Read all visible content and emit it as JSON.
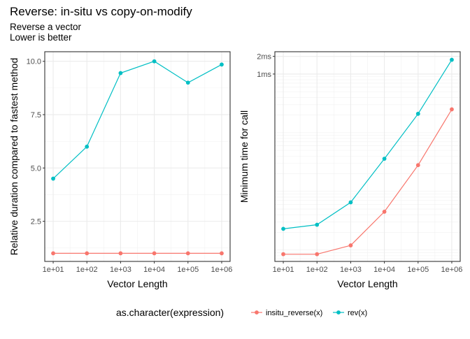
{
  "title": "Reverse: in-situ vs copy-on-modify",
  "subtitle_lines": [
    "Reverse a vector",
    "Lower is better"
  ],
  "legend": {
    "title": "as.character(expression)",
    "position": "bottom",
    "entries": [
      {
        "label": "insitu_reverse(x)",
        "color": "#F8766D"
      },
      {
        "label": "rev(x)",
        "color": "#00BFC4"
      }
    ]
  },
  "chart_data": [
    {
      "type": "line",
      "xlabel": "Vector Length",
      "ylabel": "Relative duration compared to fastest method",
      "x": [
        1,
        2,
        3,
        4,
        5,
        6
      ],
      "x_tick_labels": [
        "1e+01",
        "1e+02",
        "1e+03",
        "1e+04",
        "1e+05",
        "1e+06"
      ],
      "y_ticks": [
        2.5,
        5.0,
        7.5,
        10.0
      ],
      "y_tick_labels": [
        "2.5",
        "5.0",
        "7.5",
        "10.0"
      ],
      "ylim": [
        0.62,
        10.45
      ],
      "grid": true,
      "series": [
        {
          "name": "insitu_reverse(x)",
          "color": "#F8766D",
          "values": [
            1.0,
            1.0,
            1.0,
            1.0,
            1.0,
            1.0
          ]
        },
        {
          "name": "rev(x)",
          "color": "#00BFC4",
          "values": [
            4.5,
            6.0,
            9.45,
            10.0,
            9.0,
            9.85
          ]
        }
      ]
    },
    {
      "type": "line",
      "xlabel": "Vector Length",
      "ylabel": "Minimum time for call",
      "y_scale": "log",
      "x": [
        1,
        2,
        3,
        4,
        5,
        6
      ],
      "x_tick_labels": [
        "1e+01",
        "1e+02",
        "1e+03",
        "1e+04",
        "1e+05",
        "1e+06"
      ],
      "y_ticks_ms": [
        1,
        2
      ],
      "y_tick_labels": [
        "1ms",
        "2ms"
      ],
      "ylim_ms": [
        0.00064,
        2.4
      ],
      "grid": true,
      "series": [
        {
          "name": "insitu_reverse(x)",
          "color": "#F8766D",
          "values_ms": [
            0.00085,
            0.00085,
            0.0012,
            0.0045,
            0.028,
            0.25
          ]
        },
        {
          "name": "rev(x)",
          "color": "#00BFC4",
          "values_ms": [
            0.0023,
            0.0027,
            0.0065,
            0.036,
            0.21,
            1.75
          ]
        }
      ]
    }
  ]
}
